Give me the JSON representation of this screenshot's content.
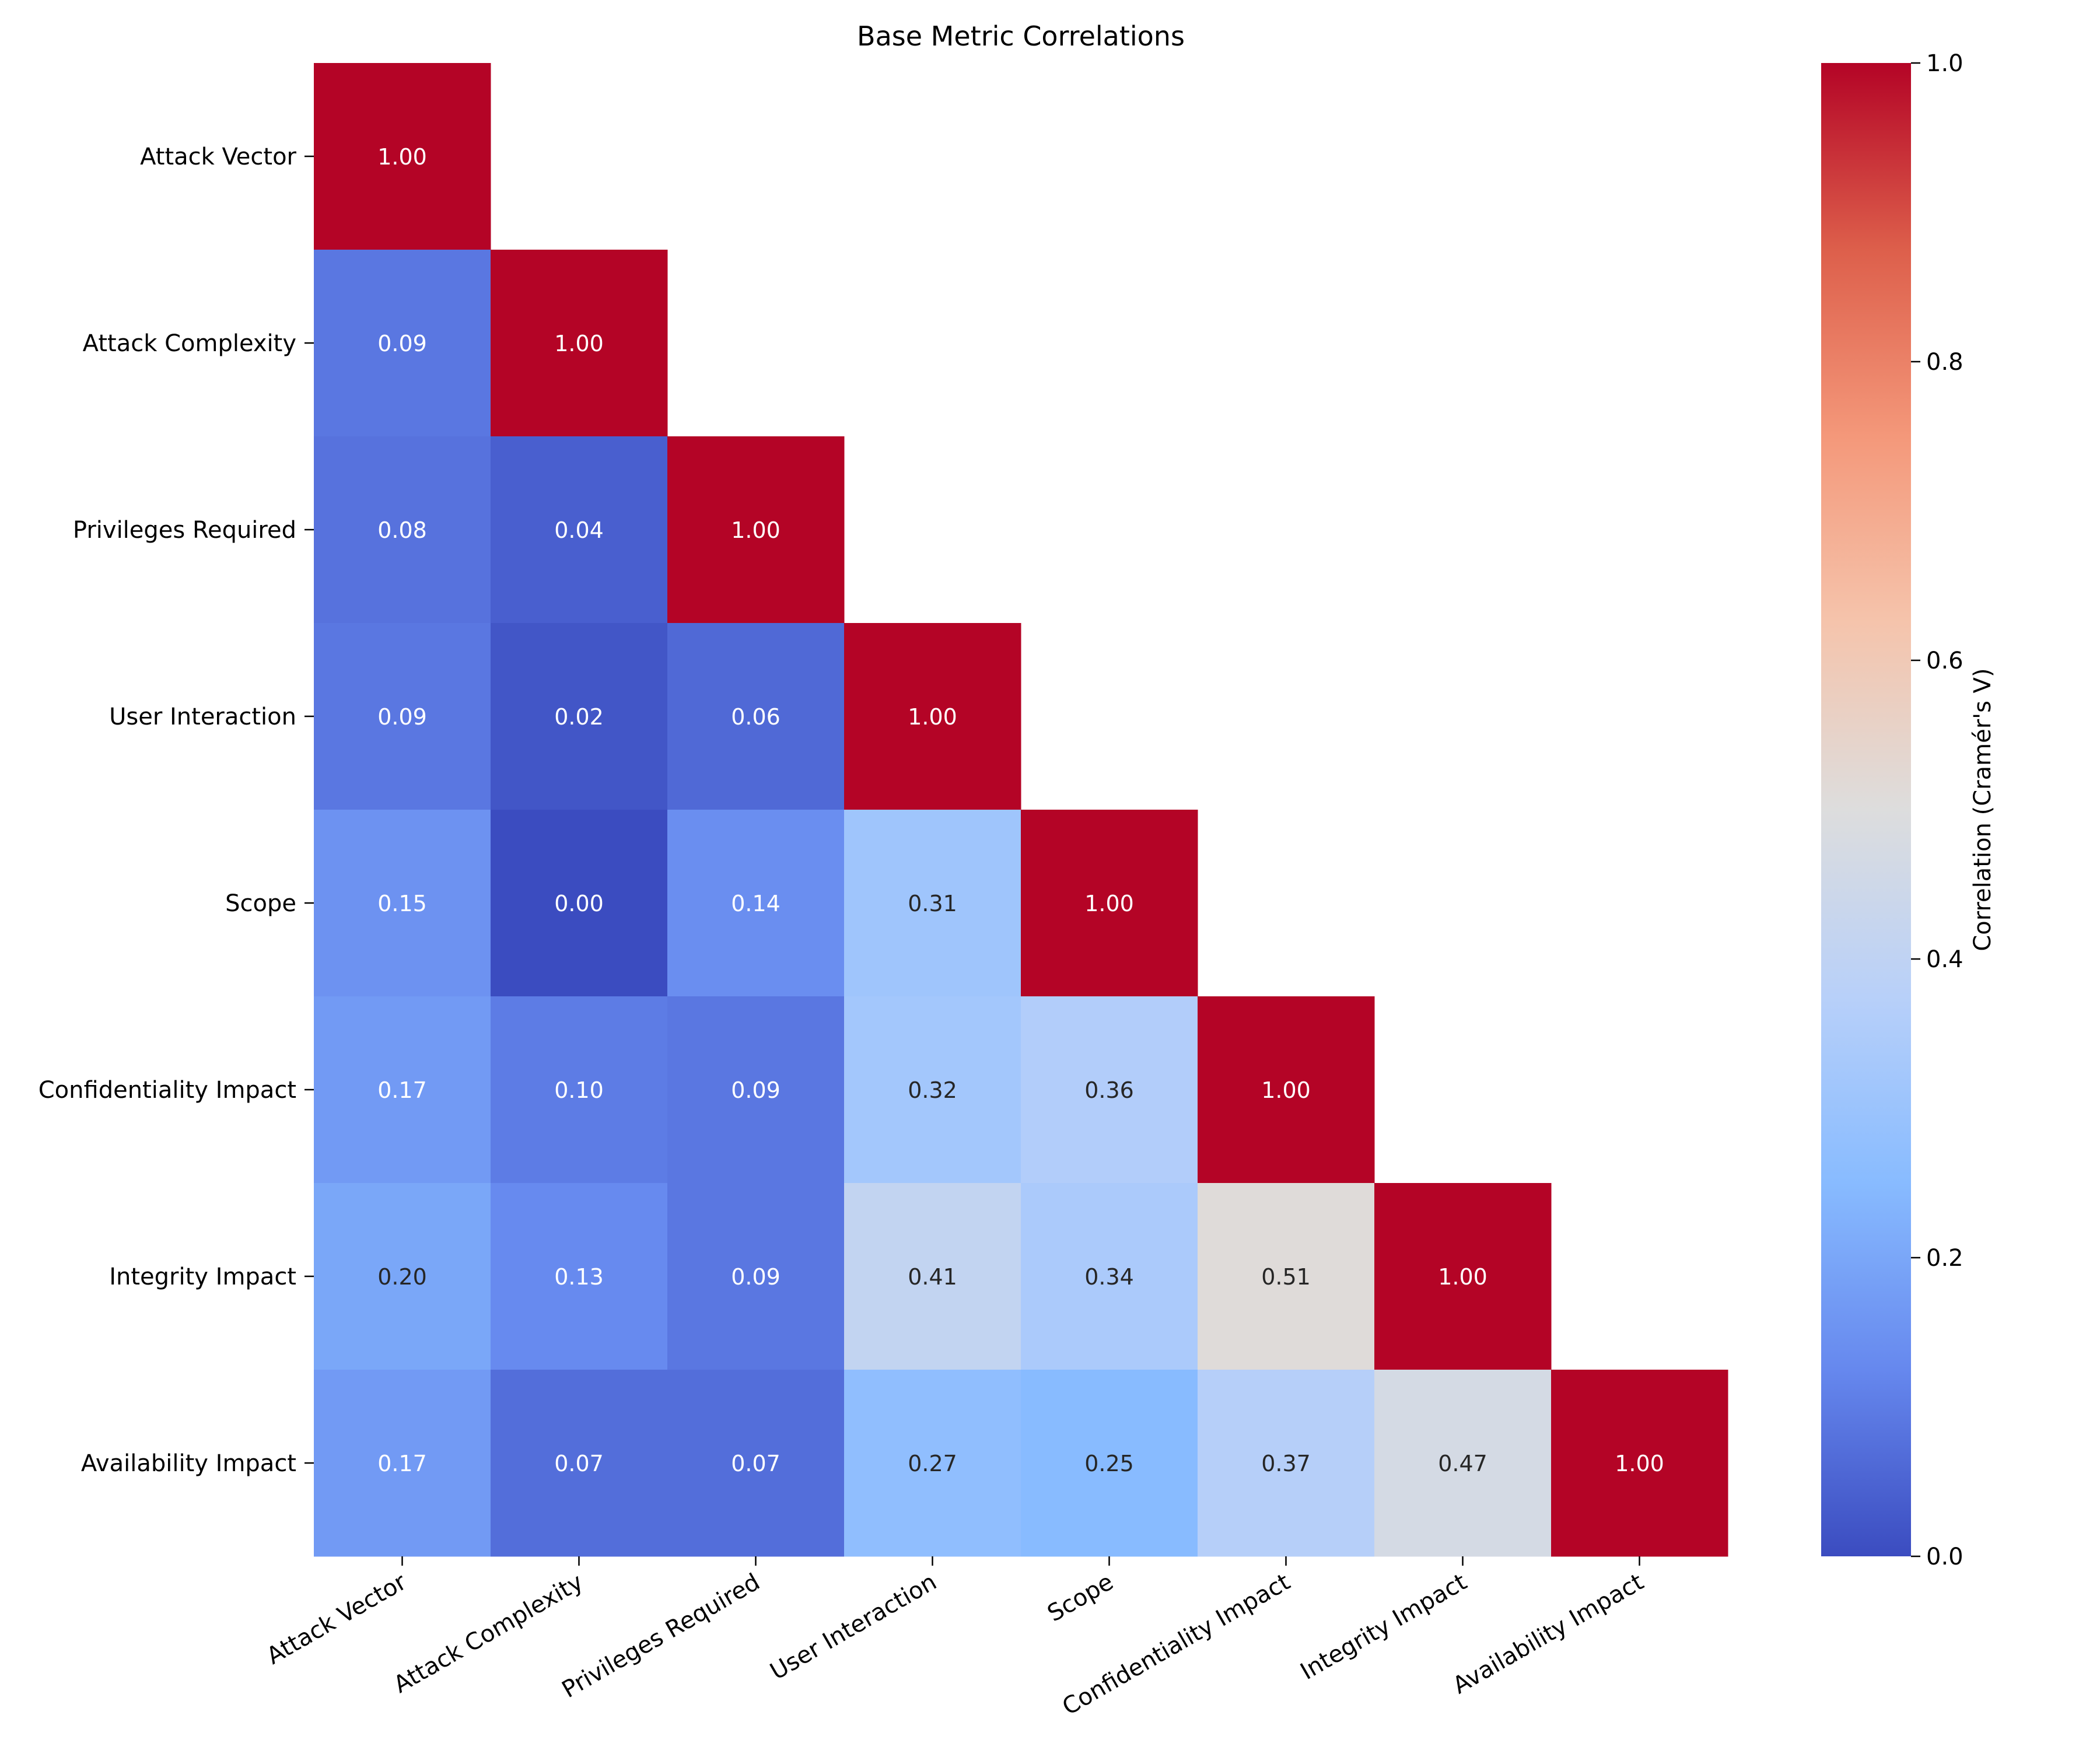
{
  "chart_data": {
    "type": "heatmap",
    "title": "Base Metric Correlations",
    "xlabel": "",
    "ylabel": "",
    "row_labels": [
      "Attack Vector",
      "Attack Complexity",
      "Privileges Required",
      "User Interaction",
      "Scope",
      "Confidentiality Impact",
      "Integrity Impact",
      "Availability Impact"
    ],
    "col_labels": [
      "Attack Vector",
      "Attack Complexity",
      "Privileges Required",
      "User Interaction",
      "Scope",
      "Confidentiality Impact",
      "Integrity Impact",
      "Availability Impact"
    ],
    "mask": "upper-triangle",
    "values": [
      [
        1.0
      ],
      [
        0.09,
        1.0
      ],
      [
        0.08,
        0.04,
        1.0
      ],
      [
        0.09,
        0.02,
        0.06,
        1.0
      ],
      [
        0.15,
        0.0,
        0.14,
        0.31,
        1.0
      ],
      [
        0.17,
        0.1,
        0.09,
        0.32,
        0.36,
        1.0
      ],
      [
        0.2,
        0.13,
        0.09,
        0.41,
        0.34,
        0.51,
        1.0
      ],
      [
        0.17,
        0.07,
        0.07,
        0.27,
        0.25,
        0.37,
        0.47,
        1.0
      ]
    ],
    "annotation_format": "0.00",
    "colormap": "coolwarm",
    "colormap_stops": [
      "#3b4cc0",
      "#6688ee",
      "#88bbff",
      "#b8d0f9",
      "#dddddd",
      "#f5c4ac",
      "#f4987a",
      "#dd5f4b",
      "#b40426"
    ],
    "vmin": 0.0,
    "vmax": 1.0,
    "colorbar": {
      "label": "Correlation (Cramér's V)",
      "ticks": [
        0.0,
        0.2,
        0.4,
        0.6,
        0.8,
        1.0
      ],
      "tick_labels": [
        "0.0",
        "0.2",
        "0.4",
        "0.6",
        "0.8",
        "1.0"
      ]
    },
    "grid": false,
    "legend": "colorbar-right"
  }
}
